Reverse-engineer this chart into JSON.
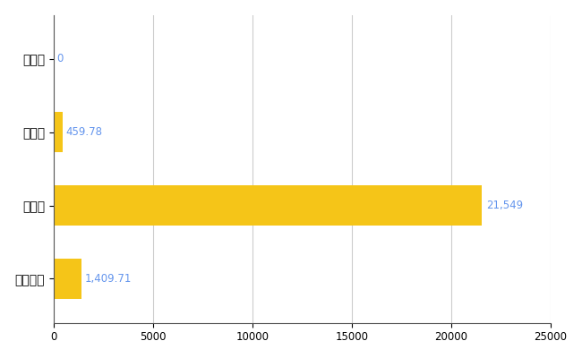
{
  "categories": [
    "北竜町",
    "県平均",
    "県最大",
    "全国平均"
  ],
  "values": [
    0,
    459.78,
    21549,
    1409.71
  ],
  "bar_color": "#F5C518",
  "label_color": "#6495ED",
  "value_labels": [
    "0",
    "459.78",
    "21,549",
    "1,409.71"
  ],
  "xlim": [
    0,
    25000
  ],
  "xticks": [
    0,
    5000,
    10000,
    15000,
    20000,
    25000
  ],
  "xtick_labels": [
    "0",
    "5000",
    "10000",
    "15000",
    "20000",
    "25000"
  ],
  "background_color": "#ffffff",
  "grid_color": "#cccccc",
  "label_fontsize": 10,
  "value_fontsize": 8.5,
  "xtick_fontsize": 8.5
}
